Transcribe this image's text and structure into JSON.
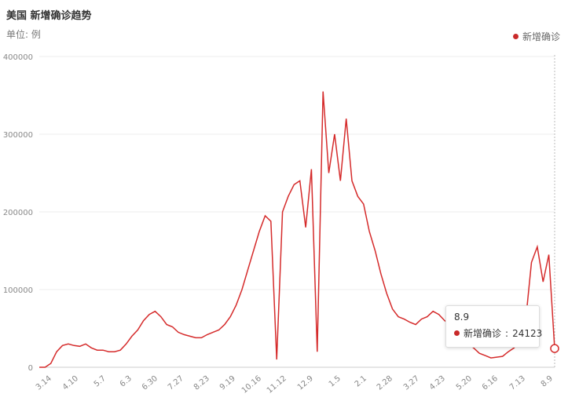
{
  "header": {
    "title": "美国 新增确诊趋势",
    "unit": "单位: 例"
  },
  "tooltip": {
    "date": "8.9",
    "label": "新增确诊",
    "value": "24123"
  },
  "colors": {
    "series": "#d52b2b",
    "axis_text": "#888888",
    "grid": "#eeeeee"
  },
  "chart_data": {
    "type": "line",
    "title": "美国 新增确诊趋势",
    "ylabel": "单位: 例",
    "ylim": [
      0,
      400000
    ],
    "yticks": [
      0,
      100000,
      200000,
      300000,
      400000
    ],
    "xtick_labels": [
      "3.14",
      "4.10",
      "5.7",
      "6.3",
      "6.30",
      "7.27",
      "8.23",
      "9.19",
      "10.16",
      "11.12",
      "12.9",
      "1.5",
      "2.1",
      "2.28",
      "3.27",
      "4.23",
      "5.20",
      "6.16",
      "7.13",
      "8.9"
    ],
    "grid": true,
    "legend": "top-right",
    "series": [
      {
        "name": "新增确诊",
        "points": [
          [
            "3.1",
            0
          ],
          [
            "3.14",
            0
          ],
          [
            "3.20",
            5000
          ],
          [
            "3.27",
            20000
          ],
          [
            "4.3",
            28000
          ],
          [
            "4.10",
            30000
          ],
          [
            "4.17",
            28000
          ],
          [
            "4.24",
            27000
          ],
          [
            "5.1",
            30000
          ],
          [
            "5.7",
            25000
          ],
          [
            "5.14",
            22000
          ],
          [
            "5.21",
            22000
          ],
          [
            "5.28",
            20000
          ],
          [
            "6.3",
            20000
          ],
          [
            "6.10",
            22000
          ],
          [
            "6.17",
            30000
          ],
          [
            "6.24",
            40000
          ],
          [
            "6.30",
            48000
          ],
          [
            "7.7",
            60000
          ],
          [
            "7.14",
            68000
          ],
          [
            "7.21",
            72000
          ],
          [
            "7.27",
            65000
          ],
          [
            "8.3",
            55000
          ],
          [
            "8.10",
            52000
          ],
          [
            "8.17",
            45000
          ],
          [
            "8.23",
            42000
          ],
          [
            "8.30",
            40000
          ],
          [
            "9.6",
            38000
          ],
          [
            "9.12",
            38000
          ],
          [
            "9.19",
            42000
          ],
          [
            "9.26",
            45000
          ],
          [
            "10.3",
            48000
          ],
          [
            "10.10",
            55000
          ],
          [
            "10.16",
            65000
          ],
          [
            "10.23",
            80000
          ],
          [
            "10.30",
            100000
          ],
          [
            "11.5",
            125000
          ],
          [
            "11.12",
            150000
          ],
          [
            "11.19",
            175000
          ],
          [
            "11.26",
            195000
          ],
          [
            "12.2",
            188000
          ],
          [
            "12.3",
            10000
          ],
          [
            "12.5",
            200000
          ],
          [
            "12.9",
            220000
          ],
          [
            "12.16",
            235000
          ],
          [
            "12.23",
            240000
          ],
          [
            "12.27",
            180000
          ],
          [
            "12.31",
            255000
          ],
          [
            "1.2",
            20000
          ],
          [
            "1.3",
            355000
          ],
          [
            "1.5",
            250000
          ],
          [
            "1.7",
            300000
          ],
          [
            "1.9",
            240000
          ],
          [
            "1.10",
            320000
          ],
          [
            "1.12",
            240000
          ],
          [
            "1.15",
            220000
          ],
          [
            "1.19",
            210000
          ],
          [
            "1.26",
            175000
          ],
          [
            "2.1",
            150000
          ],
          [
            "2.7",
            120000
          ],
          [
            "2.14",
            95000
          ],
          [
            "2.21",
            75000
          ],
          [
            "2.28",
            65000
          ],
          [
            "3.7",
            62000
          ],
          [
            "3.14",
            58000
          ],
          [
            "3.20",
            55000
          ],
          [
            "3.27",
            62000
          ],
          [
            "4.3",
            65000
          ],
          [
            "4.10",
            72000
          ],
          [
            "4.16",
            68000
          ],
          [
            "4.23",
            60000
          ],
          [
            "4.30",
            55000
          ],
          [
            "5.7",
            45000
          ],
          [
            "5.14",
            38000
          ],
          [
            "5.20",
            30000
          ],
          [
            "5.27",
            25000
          ],
          [
            "6.3",
            18000
          ],
          [
            "6.10",
            15000
          ],
          [
            "6.16",
            12000
          ],
          [
            "6.23",
            13000
          ],
          [
            "6.30",
            14000
          ],
          [
            "7.7",
            20000
          ],
          [
            "7.13",
            25000
          ],
          [
            "7.20",
            35000
          ],
          [
            "7.27",
            60000
          ],
          [
            "8.1",
            135000
          ],
          [
            "8.3",
            155000
          ],
          [
            "8.5",
            110000
          ],
          [
            "8.7",
            145000
          ],
          [
            "8.9",
            24123
          ]
        ]
      }
    ]
  }
}
